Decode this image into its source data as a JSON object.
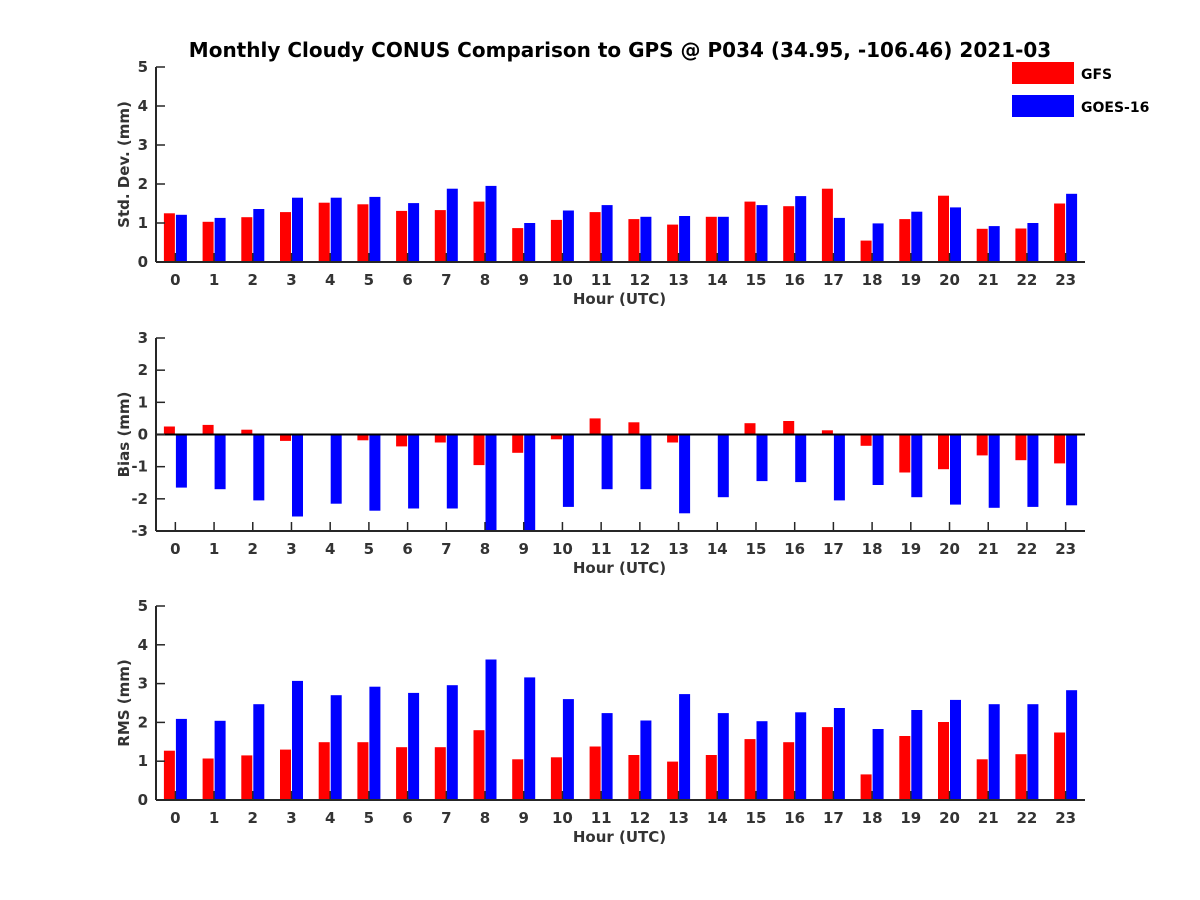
{
  "title": "Monthly Cloudy CONUS Comparison to GPS @ P034 (34.95, -106.46) 2021-03",
  "legend": [
    {
      "label": "GFS",
      "color": "#ff0000"
    },
    {
      "label": "GOES-16",
      "color": "#0000ff"
    }
  ],
  "chart_data": [
    {
      "type": "bar",
      "ylabel": "Std. Dev. (mm)",
      "xlabel": "Hour (UTC)",
      "categories": [
        "0",
        "1",
        "2",
        "3",
        "4",
        "5",
        "6",
        "7",
        "8",
        "9",
        "10",
        "11",
        "12",
        "13",
        "14",
        "15",
        "16",
        "17",
        "18",
        "19",
        "20",
        "21",
        "22",
        "23"
      ],
      "ylim": [
        0,
        5
      ],
      "yticks": [
        0,
        1,
        2,
        3,
        4,
        5
      ],
      "series": [
        {
          "name": "GFS",
          "color": "#ff0000",
          "values": [
            1.25,
            1.03,
            1.15,
            1.28,
            1.52,
            1.48,
            1.31,
            1.33,
            1.55,
            0.87,
            1.08,
            1.28,
            1.1,
            0.96,
            1.16,
            1.55,
            1.43,
            1.88,
            0.55,
            1.1,
            1.7,
            0.85,
            0.86,
            1.5
          ]
        },
        {
          "name": "GOES-16",
          "color": "#0000ff",
          "values": [
            1.21,
            1.13,
            1.36,
            1.65,
            1.65,
            1.67,
            1.51,
            1.88,
            1.95,
            1.0,
            1.32,
            1.46,
            1.16,
            1.18,
            1.16,
            1.46,
            1.69,
            1.13,
            0.99,
            1.29,
            1.4,
            0.92,
            1.0,
            1.75
          ]
        }
      ]
    },
    {
      "type": "bar",
      "ylabel": "Bias (mm)",
      "xlabel": "Hour (UTC)",
      "categories": [
        "0",
        "1",
        "2",
        "3",
        "4",
        "5",
        "6",
        "7",
        "8",
        "9",
        "10",
        "11",
        "12",
        "13",
        "14",
        "15",
        "16",
        "17",
        "18",
        "19",
        "20",
        "21",
        "22",
        "23"
      ],
      "ylim": [
        -3,
        3
      ],
      "yticks": [
        -3,
        -2,
        -1,
        0,
        1,
        2,
        3
      ],
      "series": [
        {
          "name": "GFS",
          "color": "#ff0000",
          "values": [
            0.25,
            0.3,
            0.15,
            -0.2,
            0.03,
            -0.18,
            -0.37,
            -0.25,
            -0.95,
            -0.57,
            -0.15,
            0.5,
            0.38,
            -0.25,
            -0.02,
            0.35,
            0.42,
            0.13,
            -0.35,
            -1.18,
            -1.08,
            -0.65,
            -0.8,
            -0.9
          ]
        },
        {
          "name": "GOES-16",
          "color": "#0000ff",
          "values": [
            -1.65,
            -1.7,
            -2.05,
            -2.55,
            -2.15,
            -2.37,
            -2.3,
            -2.3,
            -3.0,
            -3.0,
            -2.25,
            -1.7,
            -1.7,
            -2.45,
            -1.95,
            -1.45,
            -1.48,
            -2.05,
            -1.57,
            -1.95,
            -2.18,
            -2.28,
            -2.25,
            -2.2
          ]
        }
      ]
    },
    {
      "type": "bar",
      "ylabel": "RMS (mm)",
      "xlabel": "Hour (UTC)",
      "categories": [
        "0",
        "1",
        "2",
        "3",
        "4",
        "5",
        "6",
        "7",
        "8",
        "9",
        "10",
        "11",
        "12",
        "13",
        "14",
        "15",
        "16",
        "17",
        "18",
        "19",
        "20",
        "21",
        "22",
        "23"
      ],
      "ylim": [
        0,
        5
      ],
      "yticks": [
        0,
        1,
        2,
        3,
        4,
        5
      ],
      "series": [
        {
          "name": "GFS",
          "color": "#ff0000",
          "values": [
            1.27,
            1.07,
            1.15,
            1.3,
            1.49,
            1.49,
            1.36,
            1.36,
            1.8,
            1.05,
            1.1,
            1.38,
            1.16,
            0.99,
            1.16,
            1.57,
            1.49,
            1.88,
            0.66,
            1.65,
            2.01,
            1.05,
            1.18,
            1.74
          ]
        },
        {
          "name": "GOES-16",
          "color": "#0000ff",
          "values": [
            2.09,
            2.04,
            2.47,
            3.07,
            2.7,
            2.92,
            2.76,
            2.96,
            3.62,
            3.16,
            2.6,
            2.24,
            2.05,
            2.73,
            2.24,
            2.03,
            2.26,
            2.37,
            1.83,
            2.32,
            2.58,
            2.47,
            2.47,
            2.83
          ]
        }
      ]
    }
  ]
}
